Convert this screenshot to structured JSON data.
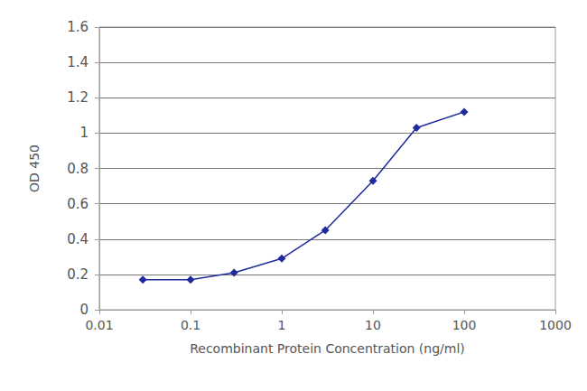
{
  "chart_data": {
    "type": "line",
    "x_label": "Recombinant Protein Concentration (ng/ml)",
    "y_label": "OD 450",
    "x": [
      0.03,
      0.1,
      0.3,
      1,
      3,
      10,
      30,
      100
    ],
    "values": [
      0.17,
      0.17,
      0.21,
      0.29,
      0.45,
      0.73,
      1.03,
      1.12
    ],
    "color": "#1f2a9c",
    "marker": "diamond",
    "log": "x",
    "xlim": [
      0.01,
      1000
    ],
    "xticks": [
      0.01,
      0.1,
      1,
      10,
      100,
      1000
    ],
    "ylim": [
      0,
      1.6
    ],
    "yticks": [
      0,
      0.2,
      0.4,
      0.6,
      0.8,
      1,
      1.2,
      1.4,
      1.6
    ],
    "grid": true
  }
}
